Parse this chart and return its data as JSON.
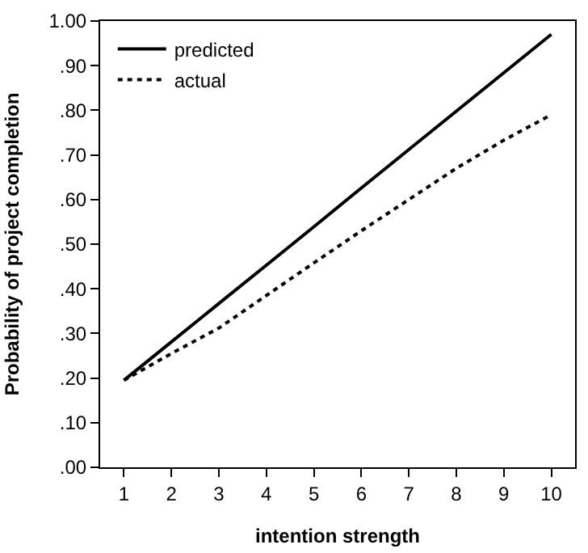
{
  "chart_data": {
    "type": "line",
    "xlabel": "intention strength",
    "ylabel": "Probability of project completion",
    "x": [
      1,
      2,
      3,
      4,
      5,
      6,
      7,
      8,
      9,
      10
    ],
    "series": [
      {
        "name": "predicted",
        "color": "#000000",
        "line_style": "solid",
        "values": [
          0.195,
          0.281,
          0.367,
          0.453,
          0.539,
          0.626,
          0.712,
          0.798,
          0.884,
          0.97
        ]
      },
      {
        "name": "actual",
        "color": "#000000",
        "line_style": "dotted",
        "values": [
          0.195,
          0.255,
          0.312,
          0.385,
          0.458,
          0.53,
          0.6,
          0.67,
          0.733,
          0.79
        ]
      }
    ],
    "xlim": [
      0.5,
      10.5
    ],
    "xticks": [
      1,
      2,
      3,
      4,
      5,
      6,
      7,
      8,
      9,
      10
    ],
    "ylim": [
      0,
      1
    ],
    "yticks": [
      {
        "value": 0,
        "label": ".00"
      },
      {
        "value": 0.1,
        "label": ".10"
      },
      {
        "value": 0.2,
        "label": ".20"
      },
      {
        "value": 0.3,
        "label": ".30"
      },
      {
        "value": 0.4,
        "label": ".40"
      },
      {
        "value": 0.5,
        "label": ".50"
      },
      {
        "value": 0.6,
        "label": ".60"
      },
      {
        "value": 0.7,
        "label": ".70"
      },
      {
        "value": 0.8,
        "label": ".80"
      },
      {
        "value": 0.9,
        "label": ".90"
      },
      {
        "value": 1,
        "label": "1.00"
      }
    ],
    "legend": "top left",
    "grid": false,
    "marker": "none"
  }
}
